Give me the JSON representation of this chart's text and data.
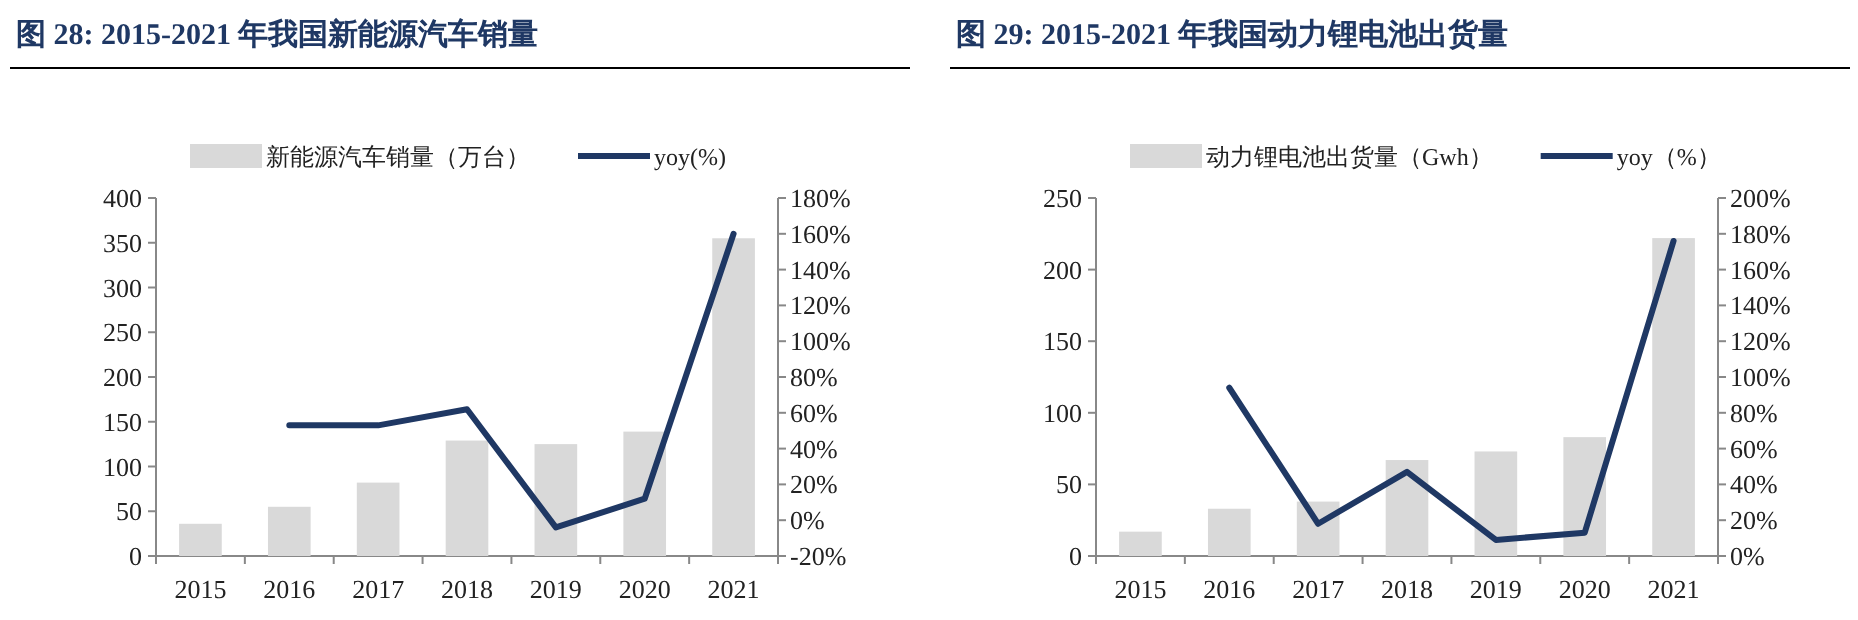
{
  "chart_data": [
    {
      "type": "bar",
      "title": "图 28:  2015-2021 年我国新能源汽车销量",
      "categories": [
        "2015",
        "2016",
        "2017",
        "2018",
        "2019",
        "2020",
        "2021"
      ],
      "legend": "top",
      "grid": false,
      "series": [
        {
          "name": "新能源汽车销量（万台）",
          "color": "#d9d9d9",
          "values": [
            36,
            55,
            82,
            129,
            125,
            139,
            355
          ]
        },
        {
          "name": "yoy(%)",
          "type": "line",
          "axis": "y2",
          "color": "#1f3864",
          "values": [
            null,
            53,
            53,
            62,
            -4,
            12,
            160
          ]
        }
      ],
      "ylim": [
        0,
        400
      ],
      "yticks": [
        0,
        50,
        100,
        150,
        200,
        250,
        300,
        350,
        400
      ],
      "y2lim": [
        -20,
        180
      ],
      "y2ticks": [
        {
          "value": -20,
          "label": "-20%"
        },
        {
          "value": 0,
          "label": "0%"
        },
        {
          "value": 20,
          "label": "20%"
        },
        {
          "value": 40,
          "label": "40%"
        },
        {
          "value": 60,
          "label": "60%"
        },
        {
          "value": 80,
          "label": "80%"
        },
        {
          "value": 100,
          "label": "100%"
        },
        {
          "value": 120,
          "label": "120%"
        },
        {
          "value": 140,
          "label": "140%"
        },
        {
          "value": 160,
          "label": "160%"
        },
        {
          "value": 180,
          "label": "180%"
        }
      ]
    },
    {
      "type": "bar",
      "title": "图 29:  2015-2021 年我国动力锂电池出货量",
      "categories": [
        "2015",
        "2016",
        "2017",
        "2018",
        "2019",
        "2020",
        "2021"
      ],
      "legend": "top",
      "grid": false,
      "series": [
        {
          "name": "动力锂电池出货量（Gwh）",
          "color": "#d9d9d9",
          "values": [
            17,
            33,
            38,
            67,
            73,
            83,
            222
          ]
        },
        {
          "name": "yoy（%）",
          "type": "line",
          "axis": "y2",
          "color": "#1f3864",
          "values": [
            null,
            94,
            18,
            47,
            9,
            13,
            176
          ]
        }
      ],
      "ylim": [
        0,
        250
      ],
      "yticks": [
        0,
        50,
        100,
        150,
        200,
        250
      ],
      "y2lim": [
        0,
        200
      ],
      "y2ticks": [
        {
          "value": 0,
          "label": "0%"
        },
        {
          "value": 20,
          "label": "20%"
        },
        {
          "value": 40,
          "label": "40%"
        },
        {
          "value": 60,
          "label": "60%"
        },
        {
          "value": 80,
          "label": "80%"
        },
        {
          "value": 100,
          "label": "100%"
        },
        {
          "value": 120,
          "label": "120%"
        },
        {
          "value": 140,
          "label": "140%"
        },
        {
          "value": 160,
          "label": "160%"
        },
        {
          "value": 180,
          "label": "180%"
        },
        {
          "value": 200,
          "label": "200%"
        }
      ]
    }
  ]
}
